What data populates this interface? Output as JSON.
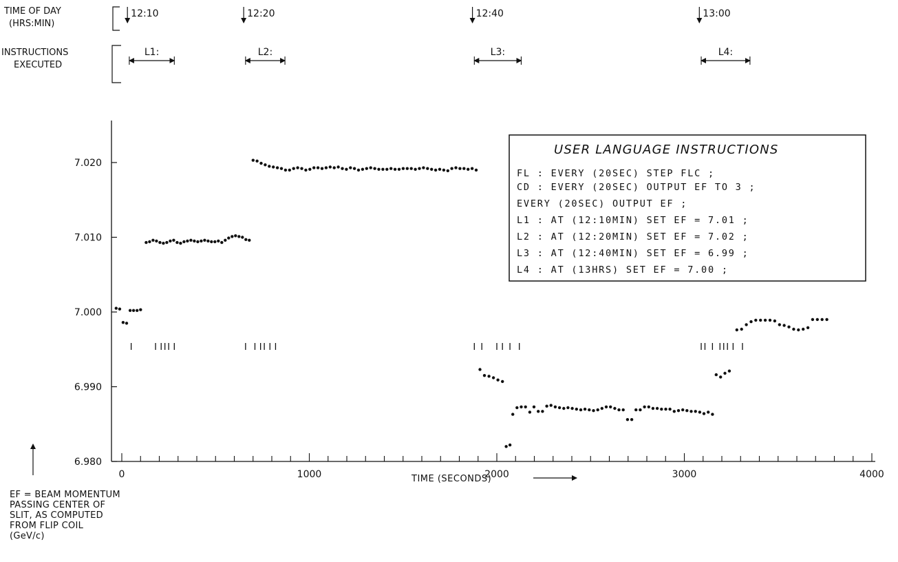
{
  "header": {
    "time_of_day_label": [
      "TIME OF DAY",
      "(HRS:MIN)"
    ],
    "instructions_label": [
      "INSTRUCTIONS",
      "EXECUTED"
    ],
    "time_marks": [
      {
        "label": "12:10",
        "t": 30
      },
      {
        "label": "12:20",
        "t": 650
      },
      {
        "label": "12:40",
        "t": 1870
      },
      {
        "label": "13:00",
        "t": 3080
      }
    ],
    "instruction_spans": [
      {
        "label": "L1:",
        "t0": 40,
        "t1": 280
      },
      {
        "label": "L2:",
        "t0": 660,
        "t1": 870
      },
      {
        "label": "L3:",
        "t0": 1880,
        "t1": 2130
      },
      {
        "label": "L4:",
        "t0": 3090,
        "t1": 3350
      }
    ]
  },
  "legend_box": {
    "title": "USER LANGUAGE INSTRUCTIONS",
    "lines": [
      "FL : EVERY (20SEC) STEP FLC ;",
      "CD : EVERY (20SEC) OUTPUT EF TO 3 ;",
      "EVERY (20SEC) OUTPUT EF ;",
      "L1 : AT (12:10MIN) SET EF = 7.01 ;",
      "L2 : AT (12:20MIN) SET EF = 7.02 ;",
      "L3 : AT (12:40MIN) SET EF =  6.99 ;",
      "L4 : AT (13HRS) SET EF =  7.00 ;"
    ]
  },
  "axis_note": [
    "EF = BEAM MOMENTUM",
    "PASSING CENTER OF",
    "SLIT, AS COMPUTED",
    "FROM FLIP COIL",
    "(GeV/c)"
  ],
  "chart_data": {
    "type": "scatter",
    "title": "",
    "xlabel": "TIME (SECONDS)",
    "ylabel": "",
    "xlim": [
      -50,
      4000
    ],
    "ylim": [
      6.98,
      7.025
    ],
    "x_ticks": [
      0,
      1000,
      2000,
      3000,
      4000
    ],
    "x_tick_labels": [
      "0",
      "1000",
      "2000",
      "3000",
      "4000"
    ],
    "y_ticks": [
      6.98,
      6.99,
      7.0,
      7.01,
      7.02
    ],
    "y_tick_labels": [
      "6.980",
      "6.990",
      "7.000",
      "7.010",
      "7.020"
    ],
    "instruction_marks": [
      50,
      180,
      210,
      230,
      250,
      280,
      660,
      710,
      740,
      760,
      790,
      820,
      1880,
      1920,
      2000,
      2030,
      2070,
      2120,
      3090,
      3110,
      3150,
      3190,
      3210,
      3230,
      3260,
      3310
    ],
    "segments": [
      {
        "x0": -30,
        "x1": 100,
        "values": [
          7.0005,
          7.0004,
          6.9986,
          6.9985,
          7.0002,
          7.0002,
          7.0002,
          7.0003
        ]
      },
      {
        "x0": 130,
        "x1": 680,
        "values": [
          7.0093,
          7.0094,
          7.0096,
          7.0095,
          7.0093,
          7.0092,
          7.0093,
          7.0095,
          7.0096,
          7.0093,
          7.0092,
          7.0094,
          7.0095,
          7.0096,
          7.0095,
          7.0094,
          7.0095,
          7.0096,
          7.0095,
          7.0094,
          7.0094,
          7.0095,
          7.0093,
          7.0096,
          7.0099,
          7.0101,
          7.0102,
          7.0101,
          7.01,
          7.0097,
          7.0096
        ]
      },
      {
        "x0": 700,
        "x1": 1890,
        "values": [
          7.0203,
          7.0202,
          7.0199,
          7.0197,
          7.0195,
          7.0194,
          7.0193,
          7.0192,
          7.019,
          7.019,
          7.0192,
          7.0193,
          7.0192,
          7.019,
          7.0191,
          7.0193,
          7.0193,
          7.0192,
          7.0193,
          7.0194,
          7.0193,
          7.0194,
          7.0192,
          7.0191,
          7.0193,
          7.0192,
          7.019,
          7.0191,
          7.0192,
          7.0193,
          7.0192,
          7.0191,
          7.0191,
          7.0191,
          7.0192,
          7.0191,
          7.0191,
          7.0192,
          7.0192,
          7.0192,
          7.0191,
          7.0192,
          7.0193,
          7.0192,
          7.0191,
          7.019,
          7.0191,
          7.019,
          7.0189,
          7.0192,
          7.0193,
          7.0192,
          7.0192,
          7.0191,
          7.0192,
          7.019
        ]
      },
      {
        "x0": 1910,
        "x1": 2030,
        "values": [
          6.9923,
          6.9915,
          6.9914,
          6.9912,
          6.9909,
          6.9907
        ]
      },
      {
        "x0": 2050,
        "x1": 2070,
        "values": [
          6.982,
          6.9822
        ]
      },
      {
        "x0": 2085,
        "x1": 3150,
        "values": [
          6.9863,
          6.9872,
          6.9873,
          6.9873,
          6.9866,
          6.9873,
          6.9867,
          6.9867,
          6.9874,
          6.9875,
          6.9873,
          6.9872,
          6.9871,
          6.9872,
          6.9871,
          6.987,
          6.9869,
          6.987,
          6.9869,
          6.9868,
          6.9869,
          6.9871,
          6.9873,
          6.9873,
          6.9871,
          6.9869,
          6.9869,
          6.9856,
          6.9856,
          6.9869,
          6.9869,
          6.9873,
          6.9873,
          6.9871,
          6.9871,
          6.987,
          6.987,
          6.987,
          6.9867,
          6.9868,
          6.9869,
          6.9868,
          6.9867,
          6.9867,
          6.9866,
          6.9864,
          6.9866,
          6.9863
        ]
      },
      {
        "x0": 3170,
        "x1": 3240,
        "values": [
          6.9916,
          6.9913,
          6.9918,
          6.9921
        ]
      },
      {
        "x0": 3280,
        "x1": 3760,
        "values": [
          6.9976,
          6.9977,
          6.9983,
          6.9987,
          6.9989,
          6.9989,
          6.9989,
          6.9989,
          6.9988,
          6.9983,
          6.9982,
          6.998,
          6.9977,
          6.9976,
          6.9977,
          6.9979,
          6.999,
          6.999,
          6.999,
          6.999
        ]
      }
    ]
  }
}
